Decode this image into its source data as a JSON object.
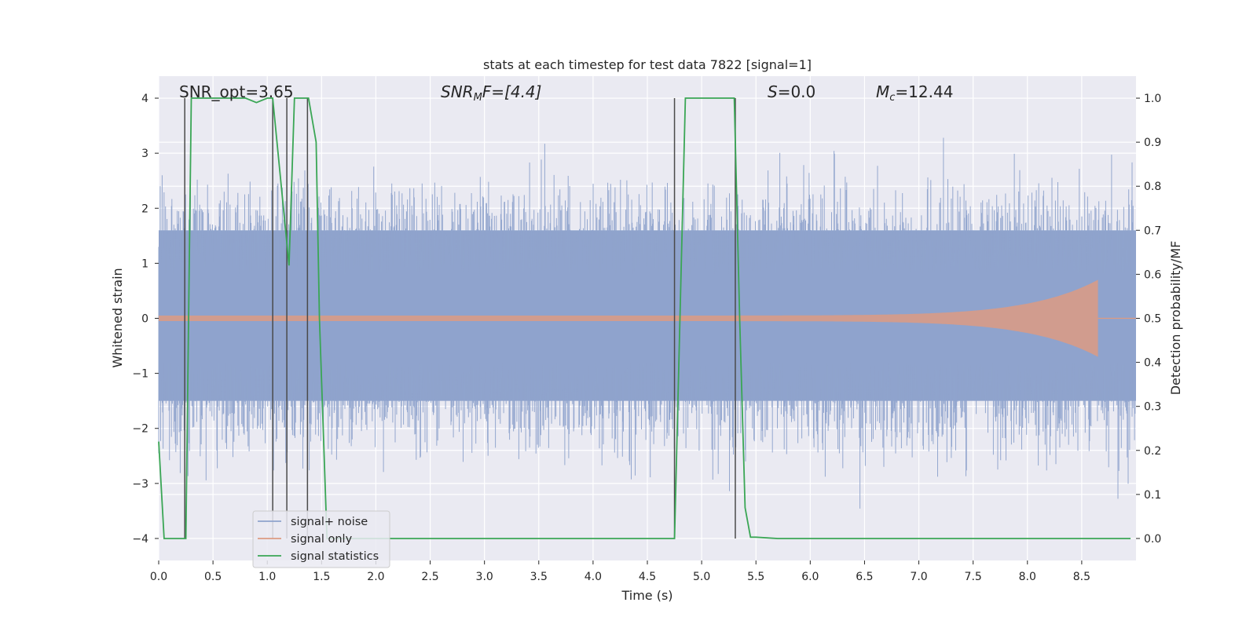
{
  "chart_data": {
    "type": "line",
    "title": "stats at each timestep for test data 7822 [signal=1]",
    "xlabel": "Time (s)",
    "ylabel": "Whitened strain",
    "y2label": "Detection probability/MF",
    "xlim": [
      0,
      9
    ],
    "ylim": [
      -4.4,
      4.4
    ],
    "y2lim": [
      -0.05,
      1.05
    ],
    "xticks": [
      "0.0",
      "0.5",
      "1.0",
      "1.5",
      "2.0",
      "2.5",
      "3.0",
      "3.5",
      "4.0",
      "4.5",
      "5.0",
      "5.5",
      "6.0",
      "6.5",
      "7.0",
      "7.5",
      "8.0",
      "8.5"
    ],
    "xtick_values": [
      0,
      0.5,
      1,
      1.5,
      2,
      2.5,
      3,
      3.5,
      4,
      4.5,
      5,
      5.5,
      6,
      6.5,
      7,
      7.5,
      8,
      8.5
    ],
    "yticks": [
      "4",
      "3",
      "2",
      "1",
      "0",
      "−1",
      "−2",
      "−3",
      "−4"
    ],
    "ytick_values": [
      4,
      3,
      2,
      1,
      0,
      -1,
      -2,
      -3,
      -4
    ],
    "y2ticks": [
      "1.0",
      "0.9",
      "0.8",
      "0.7",
      "0.6",
      "0.5",
      "0.4",
      "0.3",
      "0.2",
      "0.1",
      "0.0"
    ],
    "y2tick_values": [
      1.0,
      0.9,
      0.8,
      0.7,
      0.6,
      0.5,
      0.4,
      0.3,
      0.2,
      0.1,
      0.0
    ],
    "grid": true,
    "legend_position": "lower-left",
    "annotations": {
      "snr_opt": "SNR_opt=3.65",
      "snr_mf_base": "SNR",
      "snr_mf_sub": "M",
      "snr_mf_rest": "F=[4.4]",
      "s_italic": "S",
      "s_rest": "=0.0",
      "mc_base": "M",
      "mc_sub": "c",
      "mc_rest": "=12.44"
    },
    "series": [
      {
        "name": "signal+ noise",
        "color": "#8fa3cc",
        "description_values": {
          "band_core": [
            -1.5,
            1.6
          ],
          "peak_abs_max": 4.0
        }
      },
      {
        "name": "signal only",
        "color": "#dd9b82",
        "chirp_end_time": 8.65,
        "peak_amplitude": 0.7
      },
      {
        "name": "signal statistics",
        "color": "#3aa655",
        "x": [
          0.0,
          0.05,
          0.25,
          0.3,
          0.55,
          0.8,
          0.9,
          1.0,
          1.05,
          1.2,
          1.25,
          1.38,
          1.45,
          1.48,
          1.55,
          3.5,
          3.7,
          4.5,
          4.75,
          4.8,
          4.85,
          5.3,
          5.35,
          5.4,
          5.45,
          5.5,
          5.7,
          8.95
        ],
        "y": [
          0.22,
          0.0,
          0.0,
          1.0,
          1.0,
          1.0,
          0.99,
          1.0,
          1.0,
          0.62,
          1.0,
          1.0,
          0.9,
          0.5,
          0.0,
          0.0,
          0.0,
          0.0,
          0.0,
          0.5,
          1.0,
          1.0,
          0.5,
          0.07,
          0.003,
          0.003,
          0.0,
          0.0
        ]
      }
    ],
    "vertical_markers": [
      {
        "x": 0.24,
        "top": 1.0,
        "bottom": 0.0
      },
      {
        "x": 1.05,
        "top": 1.0,
        "bottom": 0.0
      },
      {
        "x": 1.18,
        "top": 1.0,
        "bottom": 0.0
      },
      {
        "x": 1.37,
        "top": 1.0,
        "bottom": 0.0
      },
      {
        "x": 4.75,
        "top": 1.0,
        "bottom": 0.0
      },
      {
        "x": 5.31,
        "top": 1.0,
        "bottom": 0.0
      }
    ],
    "colors": {
      "plot_bg": "#eaeaf2",
      "grid": "#ffffff",
      "marker_lines": "#4a4a4a"
    }
  }
}
